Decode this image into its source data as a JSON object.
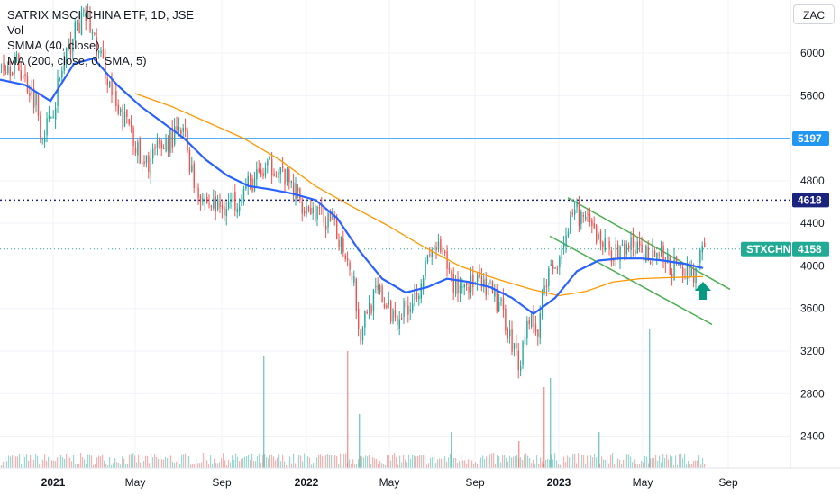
{
  "legend": {
    "title": "SATRIX MSCI CHINA ETF, 1D, JSE",
    "vol": "Vol",
    "smma": "SMMA (40, close)",
    "ma": "MA (200, close, 0, SMA, 5)"
  },
  "currency": "ZAC",
  "colors": {
    "up": "#26a69a",
    "down": "#ef5350",
    "smma": "#2962ff",
    "ma": "#ff9800",
    "channel": "#4caf50",
    "hline": "#2196f3",
    "dotted": "#1a237e",
    "arrow": "#089981",
    "ticker": "#22ab94"
  },
  "chart_data": {
    "type": "candlestick",
    "ylim": [
      2100,
      6500
    ],
    "y_ticks": [
      2400,
      2800,
      3200,
      3600,
      4000,
      4400,
      4800,
      5200,
      5600,
      6000
    ],
    "x_ticks": [
      {
        "label": "2021",
        "bold": true
      },
      {
        "label": "May",
        "bold": false
      },
      {
        "label": "Sep",
        "bold": false
      },
      {
        "label": "2022",
        "bold": true
      },
      {
        "label": "May",
        "bold": false
      },
      {
        "label": "Sep",
        "bold": false
      },
      {
        "label": "2023",
        "bold": true
      },
      {
        "label": "May",
        "bold": false
      },
      {
        "label": "Sep",
        "bold": false
      }
    ],
    "price_path": [
      [
        0,
        5900
      ],
      [
        18,
        5900
      ],
      [
        40,
        5550
      ],
      [
        45,
        5250
      ],
      [
        54,
        5350
      ],
      [
        70,
        5900
      ],
      [
        84,
        6250
      ],
      [
        96,
        6350
      ],
      [
        106,
        6050
      ],
      [
        118,
        5800
      ],
      [
        130,
        5400
      ],
      [
        144,
        5350
      ],
      [
        157,
        4900
      ],
      [
        170,
        5050
      ],
      [
        188,
        5200
      ],
      [
        204,
        5250
      ],
      [
        214,
        4800
      ],
      [
        228,
        4600
      ],
      [
        242,
        4550
      ],
      [
        258,
        4600
      ],
      [
        274,
        4750
      ],
      [
        288,
        4850
      ],
      [
        304,
        4950
      ],
      [
        318,
        4800
      ],
      [
        334,
        4600
      ],
      [
        350,
        4500
      ],
      [
        366,
        4400
      ],
      [
        380,
        4200
      ],
      [
        392,
        3900
      ],
      [
        398,
        3300
      ],
      [
        406,
        3600
      ],
      [
        420,
        3750
      ],
      [
        432,
        3550
      ],
      [
        444,
        3550
      ],
      [
        458,
        3700
      ],
      [
        470,
        3950
      ],
      [
        482,
        4200
      ],
      [
        492,
        4050
      ],
      [
        504,
        3800
      ],
      [
        518,
        3850
      ],
      [
        534,
        3800
      ],
      [
        548,
        3700
      ],
      [
        560,
        3500
      ],
      [
        570,
        3200
      ],
      [
        576,
        3100
      ],
      [
        586,
        3550
      ],
      [
        596,
        3350
      ],
      [
        604,
        3900
      ],
      [
        614,
        3950
      ],
      [
        624,
        4250
      ],
      [
        640,
        4500
      ],
      [
        654,
        4350
      ],
      [
        670,
        4200
      ],
      [
        684,
        4100
      ],
      [
        698,
        4200
      ],
      [
        712,
        4100
      ],
      [
        726,
        4150
      ],
      [
        742,
        4000
      ],
      [
        756,
        3950
      ],
      [
        772,
        3950
      ],
      [
        780,
        4158
      ]
    ],
    "smma_path": [
      [
        0,
        5750
      ],
      [
        28,
        5700
      ],
      [
        56,
        5550
      ],
      [
        82,
        5900
      ],
      [
        104,
        5950
      ],
      [
        130,
        5700
      ],
      [
        156,
        5500
      ],
      [
        180,
        5350
      ],
      [
        204,
        5200
      ],
      [
        228,
        5000
      ],
      [
        252,
        4850
      ],
      [
        276,
        4750
      ],
      [
        300,
        4720
      ],
      [
        324,
        4680
      ],
      [
        350,
        4620
      ],
      [
        374,
        4450
      ],
      [
        398,
        4150
      ],
      [
        424,
        3880
      ],
      [
        450,
        3750
      ],
      [
        474,
        3800
      ],
      [
        496,
        3880
      ],
      [
        520,
        3850
      ],
      [
        544,
        3800
      ],
      [
        568,
        3700
      ],
      [
        592,
        3550
      ],
      [
        616,
        3700
      ],
      [
        640,
        3950
      ],
      [
        664,
        4050
      ],
      [
        688,
        4070
      ],
      [
        712,
        4070
      ],
      [
        736,
        4050
      ],
      [
        760,
        4020
      ],
      [
        780,
        3980
      ]
    ],
    "ma_path": [
      [
        150,
        5620
      ],
      [
        190,
        5500
      ],
      [
        230,
        5350
      ],
      [
        270,
        5200
      ],
      [
        310,
        5000
      ],
      [
        350,
        4750
      ],
      [
        390,
        4560
      ],
      [
        430,
        4380
      ],
      [
        470,
        4180
      ],
      [
        510,
        4000
      ],
      [
        550,
        3880
      ],
      [
        590,
        3780
      ],
      [
        620,
        3720
      ],
      [
        650,
        3760
      ],
      [
        680,
        3850
      ],
      [
        710,
        3880
      ],
      [
        740,
        3890
      ],
      [
        780,
        3900
      ]
    ],
    "channel_upper": [
      [
        630,
        4640
      ],
      [
        810,
        3780
      ]
    ],
    "channel_lower": [
      [
        610,
        4280
      ],
      [
        790,
        3450
      ]
    ],
    "hline_value": 5197,
    "dotted_value": 4618,
    "price_dotted_value": 4158,
    "last_ticker": "STXCHN",
    "last_price": 4158,
    "hline_label": "5197",
    "dotted_label": "4618",
    "arrow_x": 780,
    "arrow_price": 3750,
    "volume_spikes": [
      {
        "x": 292,
        "height": 125
      },
      {
        "x": 385,
        "height": 130
      },
      {
        "x": 398,
        "height": 60
      },
      {
        "x": 500,
        "height": 40
      },
      {
        "x": 575,
        "height": 30
      },
      {
        "x": 603,
        "height": 90
      },
      {
        "x": 610,
        "height": 100
      },
      {
        "x": 664,
        "height": 40
      },
      {
        "x": 720,
        "height": 155
      }
    ]
  }
}
